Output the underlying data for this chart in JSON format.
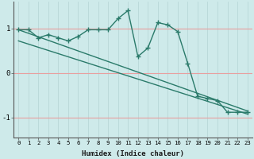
{
  "xlabel": "Humidex (Indice chaleur)",
  "background_color": "#ceeaea",
  "grid_color_h": "#e8a0a0",
  "grid_color_v": "#b8d8d8",
  "line_color": "#2a7a6a",
  "xlim": [
    -0.5,
    23.5
  ],
  "ylim": [
    -1.45,
    1.6
  ],
  "yticks": [
    -1,
    0,
    1
  ],
  "xticks": [
    0,
    1,
    2,
    3,
    4,
    5,
    6,
    7,
    8,
    9,
    10,
    11,
    12,
    13,
    14,
    15,
    16,
    17,
    18,
    19,
    20,
    21,
    22,
    23
  ],
  "line1_x": [
    0,
    1,
    2,
    3,
    4,
    5,
    6,
    7,
    8,
    9,
    10,
    11,
    12,
    13,
    14,
    15,
    16,
    17,
    18,
    19,
    20,
    21,
    22,
    23
  ],
  "line1_y": [
    0.97,
    0.97,
    0.79,
    0.86,
    0.79,
    0.72,
    0.82,
    0.97,
    0.97,
    0.97,
    1.22,
    1.4,
    0.37,
    0.56,
    1.13,
    1.08,
    0.93,
    0.22,
    -0.52,
    -0.57,
    -0.62,
    -0.88,
    -0.88,
    -0.88
  ],
  "line2_x": [
    0,
    23
  ],
  "line2_y": [
    0.97,
    -0.85
  ],
  "line3_x": [
    0,
    23
  ],
  "line3_y": [
    0.72,
    -0.92
  ]
}
